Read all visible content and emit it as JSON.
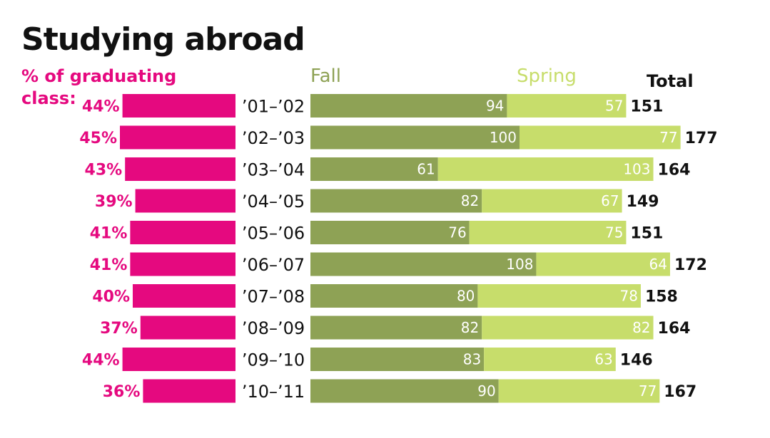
{
  "title": "Studying abroad",
  "pct_axis_label_line1": "% of graduating",
  "pct_axis_label_line2": "class:",
  "legend": {
    "fall": "Fall",
    "spring": "Spring",
    "total": "Total"
  },
  "colors": {
    "pct": "#e5097f",
    "fall": "#8ea255",
    "spring": "#c7dd6b",
    "text": "#111111"
  },
  "chart_data": {
    "type": "bar",
    "title": "Studying abroad",
    "categories": [
      "’01–’02",
      "’02–’03",
      "’03–’04",
      "’04–’05",
      "’05–’06",
      "’06–’07",
      "’07–’08",
      "’08–’09",
      "’09–’10",
      "’10–’11"
    ],
    "series": [
      {
        "name": "% of graduating class",
        "values": [
          44,
          45,
          43,
          39,
          41,
          41,
          40,
          37,
          44,
          36
        ],
        "labels": [
          "44%",
          "45%",
          "43%",
          "39%",
          "41%",
          "41%",
          "40%",
          "37%",
          "44%",
          "36%"
        ]
      },
      {
        "name": "Fall",
        "values": [
          94,
          100,
          61,
          82,
          76,
          108,
          80,
          82,
          83,
          90
        ]
      },
      {
        "name": "Spring",
        "values": [
          57,
          77,
          103,
          67,
          75,
          64,
          78,
          82,
          63,
          77
        ]
      },
      {
        "name": "Total",
        "values": [
          151,
          177,
          164,
          149,
          151,
          172,
          158,
          164,
          146,
          167
        ]
      }
    ],
    "orientation": "horizontal",
    "stacked": [
      "Fall",
      "Spring"
    ]
  }
}
